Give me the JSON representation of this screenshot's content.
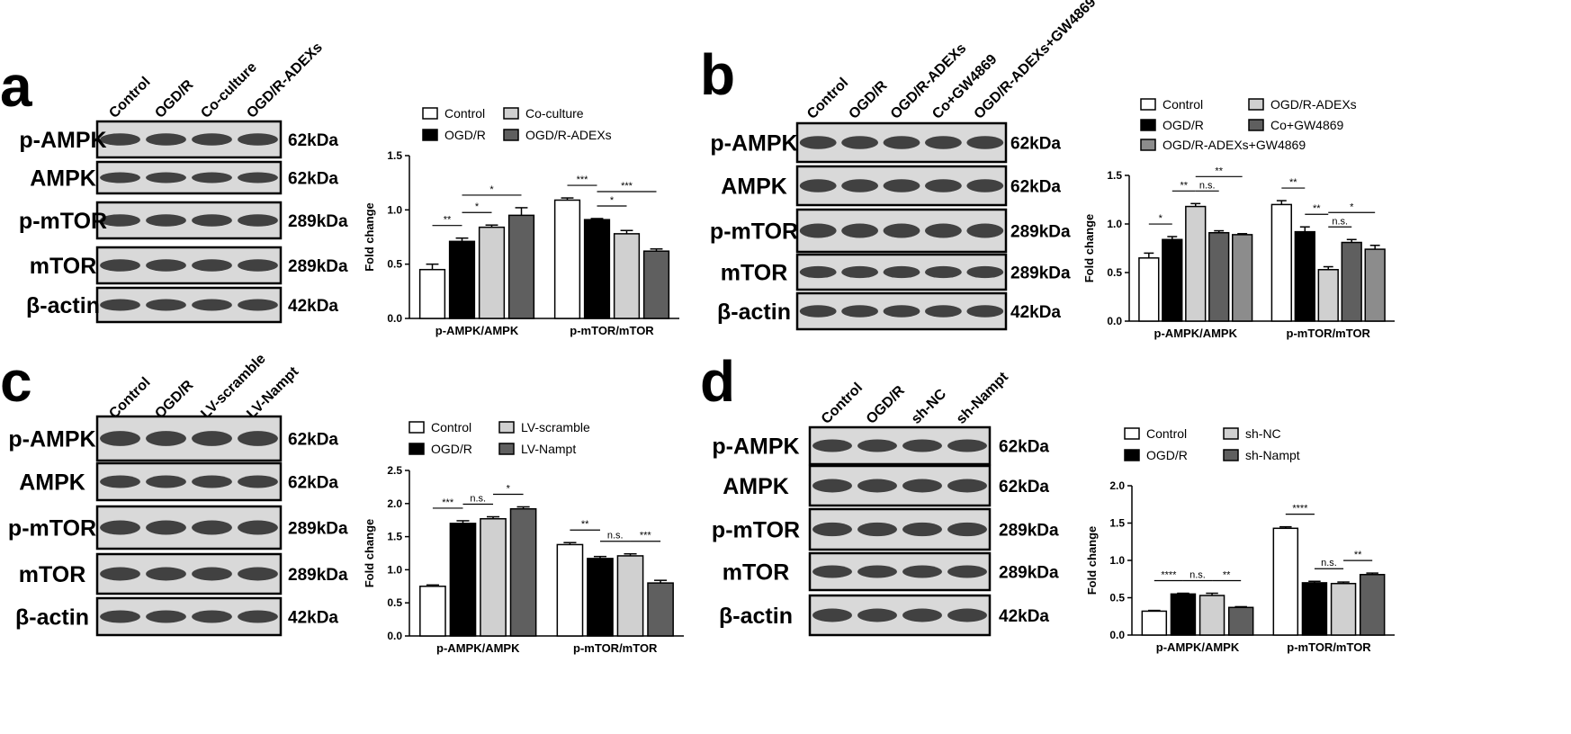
{
  "panels": [
    {
      "letter": "a",
      "lanes": [
        "Control",
        "OGD/R",
        "Co-culture",
        "OGD/R-ADEXs"
      ],
      "proteins": [
        "p-AMPK",
        "AMPK",
        "p-mTOR",
        "mTOR",
        "β-actin"
      ],
      "sizes": [
        "62kDa",
        "62kDa",
        "289kDa",
        "289kDa",
        "42kDa"
      ]
    },
    {
      "letter": "b",
      "lanes": [
        "Control",
        "OGD/R",
        "OGD/R-ADEXs",
        "Co+GW4869",
        "OGD/R-ADEXs+GW4869"
      ],
      "proteins": [
        "p-AMPK",
        "AMPK",
        "p-mTOR",
        "mTOR",
        "β-actin"
      ],
      "sizes": [
        "62kDa",
        "62kDa",
        "289kDa",
        "289kDa",
        "42kDa"
      ]
    },
    {
      "letter": "c",
      "lanes": [
        "Control",
        "OGD/R",
        "LV-scramble",
        "LV-Nampt"
      ],
      "proteins": [
        "p-AMPK",
        "AMPK",
        "p-mTOR",
        "mTOR",
        "β-actin"
      ],
      "sizes": [
        "62kDa",
        "62kDa",
        "289kDa",
        "289kDa",
        "42kDa"
      ]
    },
    {
      "letter": "d",
      "lanes": [
        "Control",
        "OGD/R",
        "sh-NC",
        "sh-Nampt"
      ],
      "proteins": [
        "p-AMPK",
        "AMPK",
        "p-mTOR",
        "mTOR",
        "β-actin"
      ],
      "sizes": [
        "62kDa",
        "62kDa",
        "289kDa",
        "289kDa",
        "42kDa"
      ]
    }
  ],
  "chart_data": [
    {
      "type": "bar",
      "ylabel": "Fold change",
      "categories": [
        "p-AMPK/AMPK",
        "p-mTOR/mTOR"
      ],
      "ylim": [
        0,
        1.5
      ],
      "yticks": [
        {
          "value": 0,
          "label": "0.0"
        },
        0.5,
        {
          "value": 1,
          "label": "1.0"
        },
        1.5
      ],
      "series": [
        {
          "name": "Control",
          "color": "#ffffff",
          "values": [
            0.45,
            1.09
          ],
          "errors": [
            0.05,
            0.02
          ]
        },
        {
          "name": "OGD/R",
          "color": "#000000",
          "values": [
            0.71,
            0.91
          ],
          "errors": [
            0.03,
            0.01
          ]
        },
        {
          "name": "Co-culture",
          "color": "#d0d0d0",
          "values": [
            0.84,
            0.78
          ],
          "errors": [
            0.02,
            0.03
          ]
        },
        {
          "name": "OGD/R-ADEXs",
          "color": "#5f5f5f",
          "values": [
            0.95,
            0.62
          ],
          "errors": [
            0.07,
            0.02
          ]
        }
      ],
      "significance": [
        {
          "group": 0,
          "pair": [
            0,
            1
          ],
          "label": "**"
        },
        {
          "group": 0,
          "pair": [
            1,
            2
          ],
          "label": "*"
        },
        {
          "group": 0,
          "pair": [
            1,
            3
          ],
          "label": "*"
        },
        {
          "group": 1,
          "pair": [
            0,
            1
          ],
          "label": "***"
        },
        {
          "group": 1,
          "pair": [
            1,
            2
          ],
          "label": "*"
        },
        {
          "group": 1,
          "pair": [
            1,
            3
          ],
          "label": "***"
        }
      ]
    },
    {
      "type": "bar",
      "ylabel": "Fold change",
      "categories": [
        "p-AMPK/AMPK",
        "p-mTOR/mTOR"
      ],
      "ylim": [
        0,
        1.5
      ],
      "yticks": [
        {
          "value": 0,
          "label": "0.0"
        },
        0.5,
        {
          "value": 1,
          "label": "1.0"
        },
        1.5
      ],
      "series": [
        {
          "name": "Control",
          "color": "#ffffff",
          "values": [
            0.65,
            1.2
          ],
          "errors": [
            0.05,
            0.04
          ]
        },
        {
          "name": "OGD/R",
          "color": "#000000",
          "values": [
            0.84,
            0.92
          ],
          "errors": [
            0.03,
            0.05
          ]
        },
        {
          "name": "OGD/R-ADEXs",
          "color": "#d0d0d0",
          "values": [
            1.18,
            0.53
          ],
          "errors": [
            0.03,
            0.03
          ]
        },
        {
          "name": "Co+GW4869",
          "color": "#5f5f5f",
          "values": [
            0.91,
            0.81
          ],
          "errors": [
            0.02,
            0.03
          ]
        },
        {
          "name": "OGD/R-ADEXs+GW4869",
          "color": "#8c8c8c",
          "values": [
            0.89,
            0.74
          ],
          "errors": [
            0.01,
            0.04
          ]
        }
      ],
      "significance": [
        {
          "group": 0,
          "pair": [
            0,
            1
          ],
          "label": "*"
        },
        {
          "group": 0,
          "pair": [
            1,
            2
          ],
          "label": "**"
        },
        {
          "group": 0,
          "pair": [
            2,
            3
          ],
          "label": "n.s."
        },
        {
          "group": 0,
          "pair": [
            2,
            4
          ],
          "label": "**"
        },
        {
          "group": 1,
          "pair": [
            0,
            1
          ],
          "label": "**"
        },
        {
          "group": 1,
          "pair": [
            1,
            2
          ],
          "label": "**"
        },
        {
          "group": 1,
          "pair": [
            2,
            3
          ],
          "label": "n.s."
        },
        {
          "group": 1,
          "pair": [
            2,
            4
          ],
          "label": "*"
        }
      ]
    },
    {
      "type": "bar",
      "ylabel": "Fold change",
      "categories": [
        "p-AMPK/AMPK",
        "p-mTOR/mTOR"
      ],
      "ylim": [
        0,
        2.5
      ],
      "yticks": [
        {
          "value": 0,
          "label": "0.0"
        },
        0.5,
        {
          "value": 1,
          "label": "1.0"
        },
        1.5,
        {
          "value": 2,
          "label": "2.0"
        },
        2.5
      ],
      "series": [
        {
          "name": "Control",
          "color": "#ffffff",
          "values": [
            0.75,
            1.38
          ],
          "errors": [
            0.02,
            0.03
          ]
        },
        {
          "name": "OGD/R",
          "color": "#000000",
          "values": [
            1.7,
            1.17
          ],
          "errors": [
            0.04,
            0.03
          ]
        },
        {
          "name": "LV-scramble",
          "color": "#d0d0d0",
          "values": [
            1.77,
            1.21
          ],
          "errors": [
            0.03,
            0.03
          ]
        },
        {
          "name": "LV-Nampt",
          "color": "#5f5f5f",
          "values": [
            1.92,
            0.8
          ],
          "errors": [
            0.03,
            0.04
          ]
        }
      ],
      "significance": [
        {
          "group": 0,
          "pair": [
            0,
            1
          ],
          "label": "***"
        },
        {
          "group": 0,
          "pair": [
            1,
            2
          ],
          "label": "n.s."
        },
        {
          "group": 0,
          "pair": [
            2,
            3
          ],
          "label": "*"
        },
        {
          "group": 1,
          "pair": [
            0,
            1
          ],
          "label": "**"
        },
        {
          "group": 1,
          "pair": [
            1,
            2
          ],
          "label": "n.s."
        },
        {
          "group": 1,
          "pair": [
            2,
            3
          ],
          "label": "***"
        }
      ]
    },
    {
      "type": "bar",
      "ylabel": "Fold change",
      "categories": [
        "p-AMPK/AMPK",
        "p-mTOR/mTOR"
      ],
      "ylim": [
        0,
        2
      ],
      "yticks": [
        {
          "value": 0,
          "label": "0.0"
        },
        0.5,
        {
          "value": 1,
          "label": "1.0"
        },
        1.5,
        {
          "value": 2,
          "label": "2.0"
        }
      ],
      "series": [
        {
          "name": "Control",
          "color": "#ffffff",
          "values": [
            0.32,
            1.43
          ],
          "errors": [
            0.01,
            0.02
          ]
        },
        {
          "name": "OGD/R",
          "color": "#000000",
          "values": [
            0.55,
            0.7
          ],
          "errors": [
            0.01,
            0.02
          ]
        },
        {
          "name": "sh-NC",
          "color": "#d0d0d0",
          "values": [
            0.53,
            0.69
          ],
          "errors": [
            0.03,
            0.02
          ]
        },
        {
          "name": "sh-Nampt",
          "color": "#5f5f5f",
          "values": [
            0.37,
            0.81
          ],
          "errors": [
            0.01,
            0.02
          ]
        }
      ],
      "significance": [
        {
          "group": 0,
          "pair": [
            0,
            1
          ],
          "label": "****"
        },
        {
          "group": 0,
          "pair": [
            1,
            2
          ],
          "label": "n.s."
        },
        {
          "group": 0,
          "pair": [
            2,
            3
          ],
          "label": "**"
        },
        {
          "group": 1,
          "pair": [
            0,
            1
          ],
          "label": "****"
        },
        {
          "group": 1,
          "pair": [
            1,
            2
          ],
          "label": "n.s."
        },
        {
          "group": 1,
          "pair": [
            2,
            3
          ],
          "label": "**"
        }
      ]
    }
  ]
}
